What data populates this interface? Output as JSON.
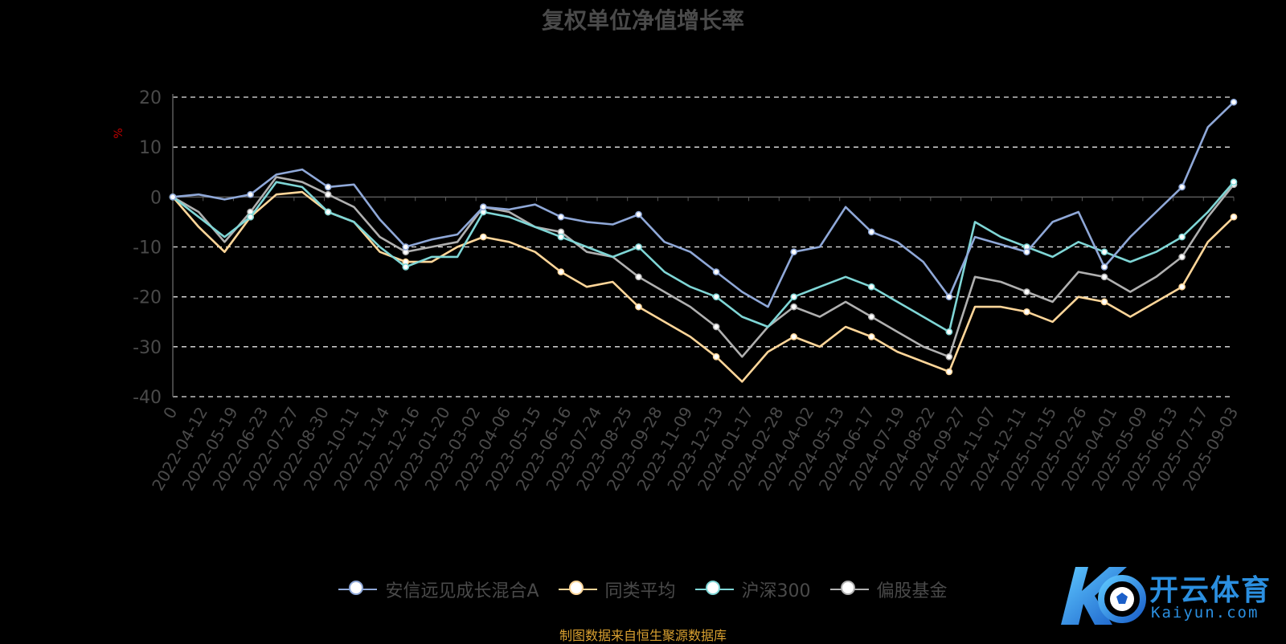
{
  "chart_data": {
    "type": "line",
    "title": "复权单位净值增长率",
    "ylabel": "%",
    "ylim": [
      -40,
      20
    ],
    "yticks": [
      20,
      10,
      0,
      -10,
      -20,
      -30,
      -40
    ],
    "grid": true,
    "legend_position": "bottom",
    "x_ticks": [
      "0",
      "2022-04-12",
      "2022-05-19",
      "2022-06-23",
      "2022-07-27",
      "2022-08-30",
      "2022-10-11",
      "2022-11-14",
      "2022-12-16",
      "2023-01-20",
      "2023-03-02",
      "2023-04-06",
      "2023-05-15",
      "2023-06-16",
      "2023-07-24",
      "2023-08-25",
      "2023-09-28",
      "2023-11-09",
      "2023-12-13",
      "2024-01-17",
      "2024-02-28",
      "2024-04-02",
      "2024-05-13",
      "2024-06-17",
      "2024-07-19",
      "2024-08-22",
      "2024-09-27",
      "2024-11-07",
      "2024-12-11",
      "2025-01-15",
      "2025-02-26",
      "2025-04-01",
      "2025-05-09",
      "2025-06-13",
      "2025-07-17",
      "2025-09-03"
    ],
    "series": [
      {
        "name": "安信远见成长混合A",
        "color": "#8fa8d8",
        "values": [
          0,
          0.5,
          -0.5,
          0.5,
          4.5,
          5.5,
          2.0,
          2.5,
          -4.5,
          -10.0,
          -8.5,
          -7.5,
          -2.0,
          -2.5,
          -1.5,
          -4.0,
          -5.0,
          -5.5,
          -3.5,
          -9.0,
          -11.0,
          -15.0,
          -19.0,
          -22.0,
          -11.0,
          -10.0,
          -2.0,
          -7.0,
          -9.0,
          -13.0,
          -20.0,
          -8.0,
          -9.5,
          -11.0,
          -5.0,
          -3.0,
          -14.0,
          -8.0,
          -3.0,
          2.0,
          14.0,
          19.0
        ]
      },
      {
        "name": "同类平均",
        "color": "#ffd699",
        "values": [
          0,
          -6.0,
          -11.0,
          -4.0,
          0.5,
          1.0,
          -3.0,
          -5.0,
          -11.0,
          -13.0,
          -13.0,
          -10.0,
          -8.0,
          -9.0,
          -11.0,
          -15.0,
          -18.0,
          -17.0,
          -22.0,
          -25.0,
          -28.0,
          -32.0,
          -37.0,
          -31.0,
          -28.0,
          -30.0,
          -26.0,
          -28.0,
          -31.0,
          -33.0,
          -35.0,
          -22.0,
          -22.0,
          -23.0,
          -25.0,
          -20.0,
          -21.0,
          -24.0,
          -21.0,
          -18.0,
          -9.0,
          -4.0
        ]
      },
      {
        "name": "沪深300",
        "color": "#7fd6d6",
        "values": [
          0,
          -4.0,
          -8.0,
          -4.0,
          3.0,
          2.0,
          -3.0,
          -5.0,
          -10.0,
          -14.0,
          -12.0,
          -12.0,
          -3.0,
          -4.0,
          -6.0,
          -8.0,
          -10.0,
          -12.0,
          -10.0,
          -15.0,
          -18.0,
          -20.0,
          -24.0,
          -26.0,
          -20.0,
          -18.0,
          -16.0,
          -18.0,
          -21.0,
          -24.0,
          -27.0,
          -5.0,
          -8.0,
          -10.0,
          -12.0,
          -9.0,
          -11.0,
          -13.0,
          -11.0,
          -8.0,
          -3.0,
          3.0
        ]
      },
      {
        "name": "偏股基金",
        "color": "#b0b0b0",
        "values": [
          0,
          -3.0,
          -9.0,
          -3.0,
          4.0,
          3.0,
          0.5,
          -2.0,
          -8.0,
          -11.0,
          -10.0,
          -9.0,
          -2.0,
          -3.0,
          -6.0,
          -7.0,
          -11.0,
          -12.0,
          -16.0,
          -19.0,
          -22.0,
          -26.0,
          -32.0,
          -26.0,
          -22.0,
          -24.0,
          -21.0,
          -24.0,
          -27.0,
          -30.0,
          -32.0,
          -16.0,
          -17.0,
          -19.0,
          -21.0,
          -15.0,
          -16.0,
          -19.0,
          -16.0,
          -12.0,
          -4.0,
          2.5
        ]
      }
    ]
  },
  "source_note": "制图数据来自恒生聚源数据库",
  "logo": {
    "name": "开云体育",
    "sub": "Kaiyun.com"
  }
}
